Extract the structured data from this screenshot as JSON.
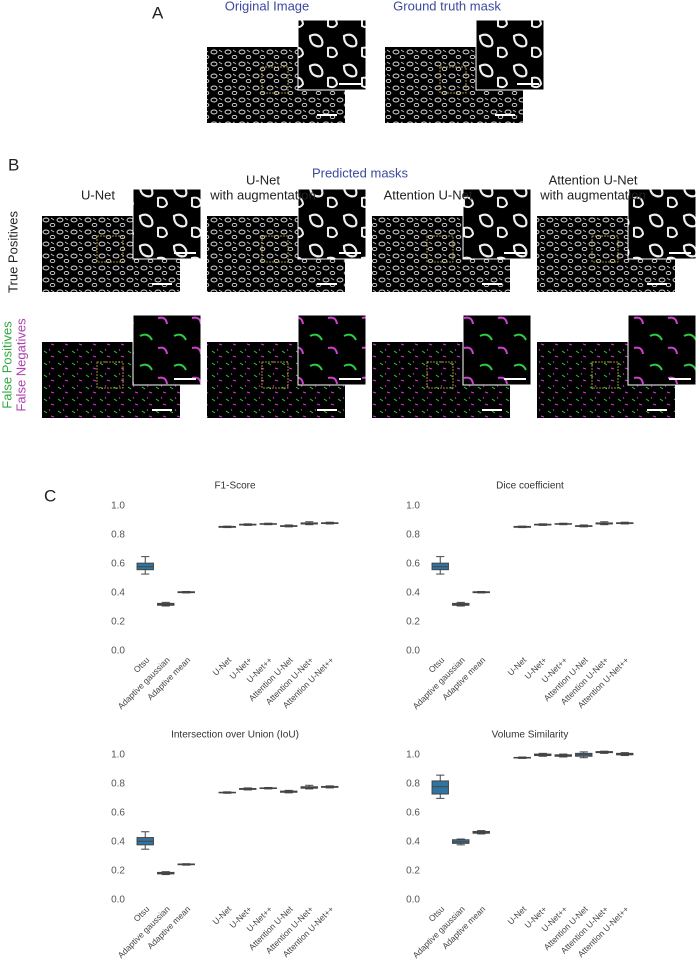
{
  "panel_a": {
    "label": "A",
    "titles": [
      "Original Image",
      "Ground truth mask"
    ]
  },
  "panel_b": {
    "label": "B",
    "title": "Predicted masks",
    "columns": [
      [
        "U-Net"
      ],
      [
        "U-Net",
        "with augmentation"
      ],
      [
        "Attention U-Net"
      ],
      [
        "Attention U-Net",
        "with augmentation"
      ]
    ],
    "rows": [
      "True Positives",
      "False Positives",
      "False Negatives"
    ]
  },
  "panel_c": {
    "label": "C"
  },
  "chart_data": [
    {
      "type": "box",
      "title": "F1-Score",
      "categories": [
        "Otsu",
        "Adaptive gaussian",
        "Adaptive mean",
        null,
        "U-Net",
        "U-Net+",
        "U-Net++",
        "Attention U-Net",
        "Attention U-Net+",
        "Attention U-Net++"
      ],
      "min": [
        0.53,
        0.31,
        0.4,
        null,
        0.85,
        0.865,
        0.87,
        0.855,
        0.87,
        0.875
      ],
      "q1": [
        0.56,
        0.315,
        0.402,
        null,
        0.852,
        0.868,
        0.873,
        0.858,
        0.875,
        0.878
      ],
      "median": [
        0.58,
        0.32,
        0.405,
        null,
        0.855,
        0.87,
        0.875,
        0.86,
        0.878,
        0.88
      ],
      "q3": [
        0.605,
        0.328,
        0.408,
        null,
        0.858,
        0.873,
        0.877,
        0.863,
        0.882,
        0.883
      ],
      "max": [
        0.65,
        0.335,
        0.41,
        null,
        0.86,
        0.876,
        0.88,
        0.868,
        0.89,
        0.887
      ],
      "color": "#3274a1",
      "ylim": [
        0,
        1.04
      ],
      "yticks": [
        {
          "value": 0,
          "label": "0.0"
        },
        0.2,
        0.4,
        0.6,
        0.8,
        {
          "value": 1,
          "label": "1.0"
        }
      ],
      "grid": false
    },
    {
      "type": "box",
      "title": "Dice coefficient",
      "categories": [
        "Otsu",
        "Adaptive gaussian",
        "Adaptive mean",
        null,
        "U-Net",
        "U-Net+",
        "U-Net++",
        "Attention U-Net",
        "Attention U-Net+",
        "Attention U-Net++"
      ],
      "min": [
        0.53,
        0.31,
        0.4,
        null,
        0.85,
        0.865,
        0.87,
        0.855,
        0.87,
        0.875
      ],
      "q1": [
        0.56,
        0.315,
        0.402,
        null,
        0.852,
        0.868,
        0.873,
        0.858,
        0.875,
        0.878
      ],
      "median": [
        0.58,
        0.32,
        0.405,
        null,
        0.855,
        0.87,
        0.875,
        0.86,
        0.878,
        0.88
      ],
      "q3": [
        0.605,
        0.328,
        0.408,
        null,
        0.858,
        0.873,
        0.877,
        0.863,
        0.882,
        0.883
      ],
      "max": [
        0.65,
        0.335,
        0.41,
        null,
        0.86,
        0.876,
        0.88,
        0.868,
        0.89,
        0.887
      ],
      "color": "#3274a1",
      "ylim": [
        0,
        1.04
      ],
      "yticks": [
        {
          "value": 0,
          "label": "0.0"
        },
        0.2,
        0.4,
        0.6,
        0.8,
        {
          "value": 1,
          "label": "1.0"
        }
      ],
      "grid": false
    },
    {
      "type": "box",
      "title": "Intersection over Union (IoU)",
      "categories": [
        "Otsu",
        "Adaptive gaussian",
        "Adaptive mean",
        null,
        "U-Net",
        "U-Net+",
        "U-Net++",
        "Attention U-Net",
        "Attention U-Net+",
        "Attention U-Net++"
      ],
      "min": [
        0.35,
        0.175,
        0.24,
        null,
        0.735,
        0.758,
        0.765,
        0.738,
        0.765,
        0.772
      ],
      "q1": [
        0.38,
        0.18,
        0.243,
        null,
        0.738,
        0.762,
        0.768,
        0.742,
        0.77,
        0.776
      ],
      "median": [
        0.405,
        0.185,
        0.245,
        null,
        0.74,
        0.765,
        0.77,
        0.745,
        0.775,
        0.779
      ],
      "q3": [
        0.43,
        0.19,
        0.248,
        null,
        0.742,
        0.768,
        0.772,
        0.75,
        0.78,
        0.782
      ],
      "max": [
        0.47,
        0.195,
        0.25,
        null,
        0.745,
        0.772,
        0.775,
        0.755,
        0.79,
        0.786
      ],
      "color": "#3274a1",
      "ylim": [
        0,
        1.04
      ],
      "yticks": [
        {
          "value": 0,
          "label": "0.0"
        },
        0.2,
        0.4,
        0.6,
        0.8,
        {
          "value": 1,
          "label": "1.0"
        }
      ],
      "grid": false
    },
    {
      "type": "box",
      "title": "Volume Similarity",
      "categories": [
        "Otsu",
        "Adaptive gaussian",
        "Adaptive mean",
        null,
        "U-Net",
        "U-Net+",
        "U-Net++",
        "Attention U-Net",
        "Attention U-Net+",
        "Attention U-Net++"
      ],
      "min": [
        0.7,
        0.38,
        0.455,
        null,
        0.975,
        0.99,
        0.985,
        0.98,
        1.01,
        0.995
      ],
      "q1": [
        0.73,
        0.39,
        0.46,
        null,
        0.978,
        0.995,
        0.99,
        0.99,
        1.015,
        1.0
      ],
      "median": [
        0.78,
        0.4,
        0.465,
        null,
        0.98,
        1.0,
        0.995,
        1.0,
        1.02,
        1.005
      ],
      "q3": [
        0.82,
        0.415,
        0.472,
        null,
        0.982,
        1.005,
        1.0,
        1.01,
        1.022,
        1.01
      ],
      "max": [
        0.86,
        0.42,
        0.478,
        null,
        0.985,
        1.01,
        1.005,
        1.02,
        1.025,
        1.015
      ],
      "color": "#3274a1",
      "ylim": [
        0,
        1.04
      ],
      "yticks": [
        {
          "value": 0,
          "label": "0.0"
        },
        0.2,
        0.4,
        0.6,
        0.8,
        {
          "value": 1,
          "label": "1.0"
        }
      ],
      "grid": false
    }
  ]
}
